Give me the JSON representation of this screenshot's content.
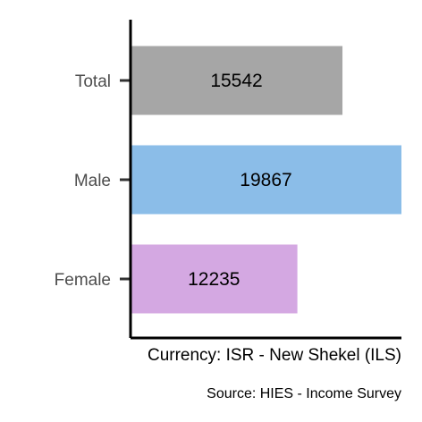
{
  "chart_data": {
    "type": "bar",
    "orientation": "horizontal",
    "categories": [
      "Total",
      "Male",
      "Female"
    ],
    "values": [
      15542,
      19867,
      12235
    ],
    "colors": [
      "#a6a6a6",
      "#8bbde8",
      "#d4a8e2"
    ],
    "data_labels": [
      "15542",
      "19867",
      "12235"
    ],
    "xlabel": "Currency: ISR - New Shekel (ILS)",
    "caption": "Source:  HIES - Income Survey",
    "xlim": [
      0,
      19867
    ],
    "grid": false
  }
}
